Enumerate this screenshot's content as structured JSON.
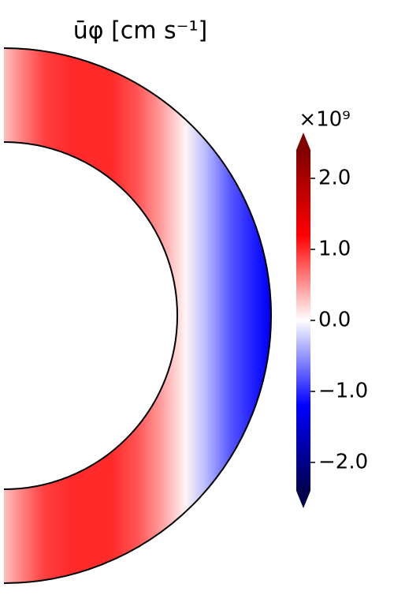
{
  "chart_data": {
    "type": "contour",
    "title": "ūφ [cm s⁻¹]",
    "colorbar": {
      "label": "×10⁹",
      "clim": [
        -2.4,
        2.4
      ],
      "ticks": [
        {
          "value": -2,
          "label": "−2.0"
        },
        {
          "value": -1,
          "label": "−1.0"
        },
        {
          "value": 0,
          "label": "0.0"
        },
        {
          "value": 1,
          "label": "1.0"
        },
        {
          "value": 2,
          "label": "2.0"
        }
      ]
    },
    "field": {
      "s": [
        0,
        0.07,
        0.15,
        0.25,
        0.4,
        0.5,
        0.58,
        0.68,
        0.75,
        0.85,
        0.95,
        1.0
      ],
      "values": [
        0.3,
        0.6,
        0.9,
        1.0,
        1.0,
        0.8,
        0.5,
        0.05,
        -0.3,
        -0.8,
        -1.1,
        -1.3
      ]
    }
  }
}
